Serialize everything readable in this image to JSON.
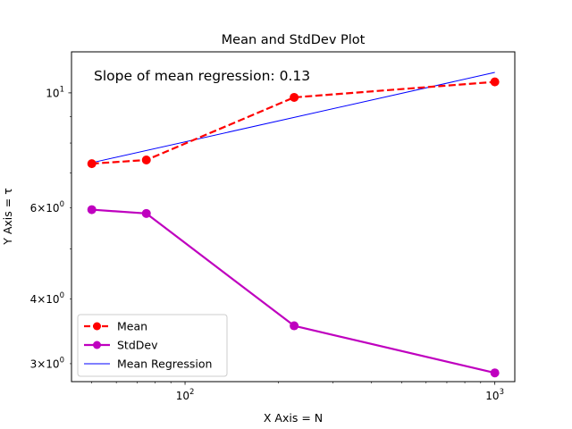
{
  "chart_data": {
    "type": "line",
    "title": "Mean and StdDev Plot",
    "xlabel": "X Axis = N",
    "ylabel": "Y Axis = τ",
    "xscale": "log",
    "yscale": "log",
    "xlim": [
      43,
      1160
    ],
    "ylim": [
      2.77,
      12.0
    ],
    "grid": false,
    "legend_position": "lower-left",
    "annotation": "Slope of mean regression: 0.13",
    "x_ticks": [
      {
        "value": 100,
        "base": "10",
        "exp": "2"
      },
      {
        "value": 1000,
        "base": "10",
        "exp": "3"
      }
    ],
    "y_ticks": [
      {
        "value": 3,
        "mant": "3",
        "base": "10",
        "exp": "0"
      },
      {
        "value": 4,
        "mant": "4",
        "base": "10",
        "exp": "0"
      },
      {
        "value": 6,
        "mant": "6",
        "base": "10",
        "exp": "0"
      },
      {
        "value": 10,
        "mant": "",
        "base": "10",
        "exp": "1"
      }
    ],
    "series": [
      {
        "name": "Mean",
        "color": "#ff0000",
        "style": "dashed",
        "marker": "circle",
        "x": [
          50,
          75,
          225,
          1000
        ],
        "y": [
          7.3,
          7.42,
          9.8,
          10.5
        ]
      },
      {
        "name": "StdDev",
        "color": "#bf00bf",
        "style": "solid",
        "marker": "circle",
        "x": [
          50,
          75,
          225,
          1000
        ],
        "y": [
          5.95,
          5.85,
          3.55,
          2.88
        ]
      },
      {
        "name": "Mean Regression",
        "color": "#0000ff",
        "style": "solid",
        "marker": "none",
        "x": [
          50,
          1000
        ],
        "y": [
          7.33,
          10.95
        ]
      }
    ]
  }
}
